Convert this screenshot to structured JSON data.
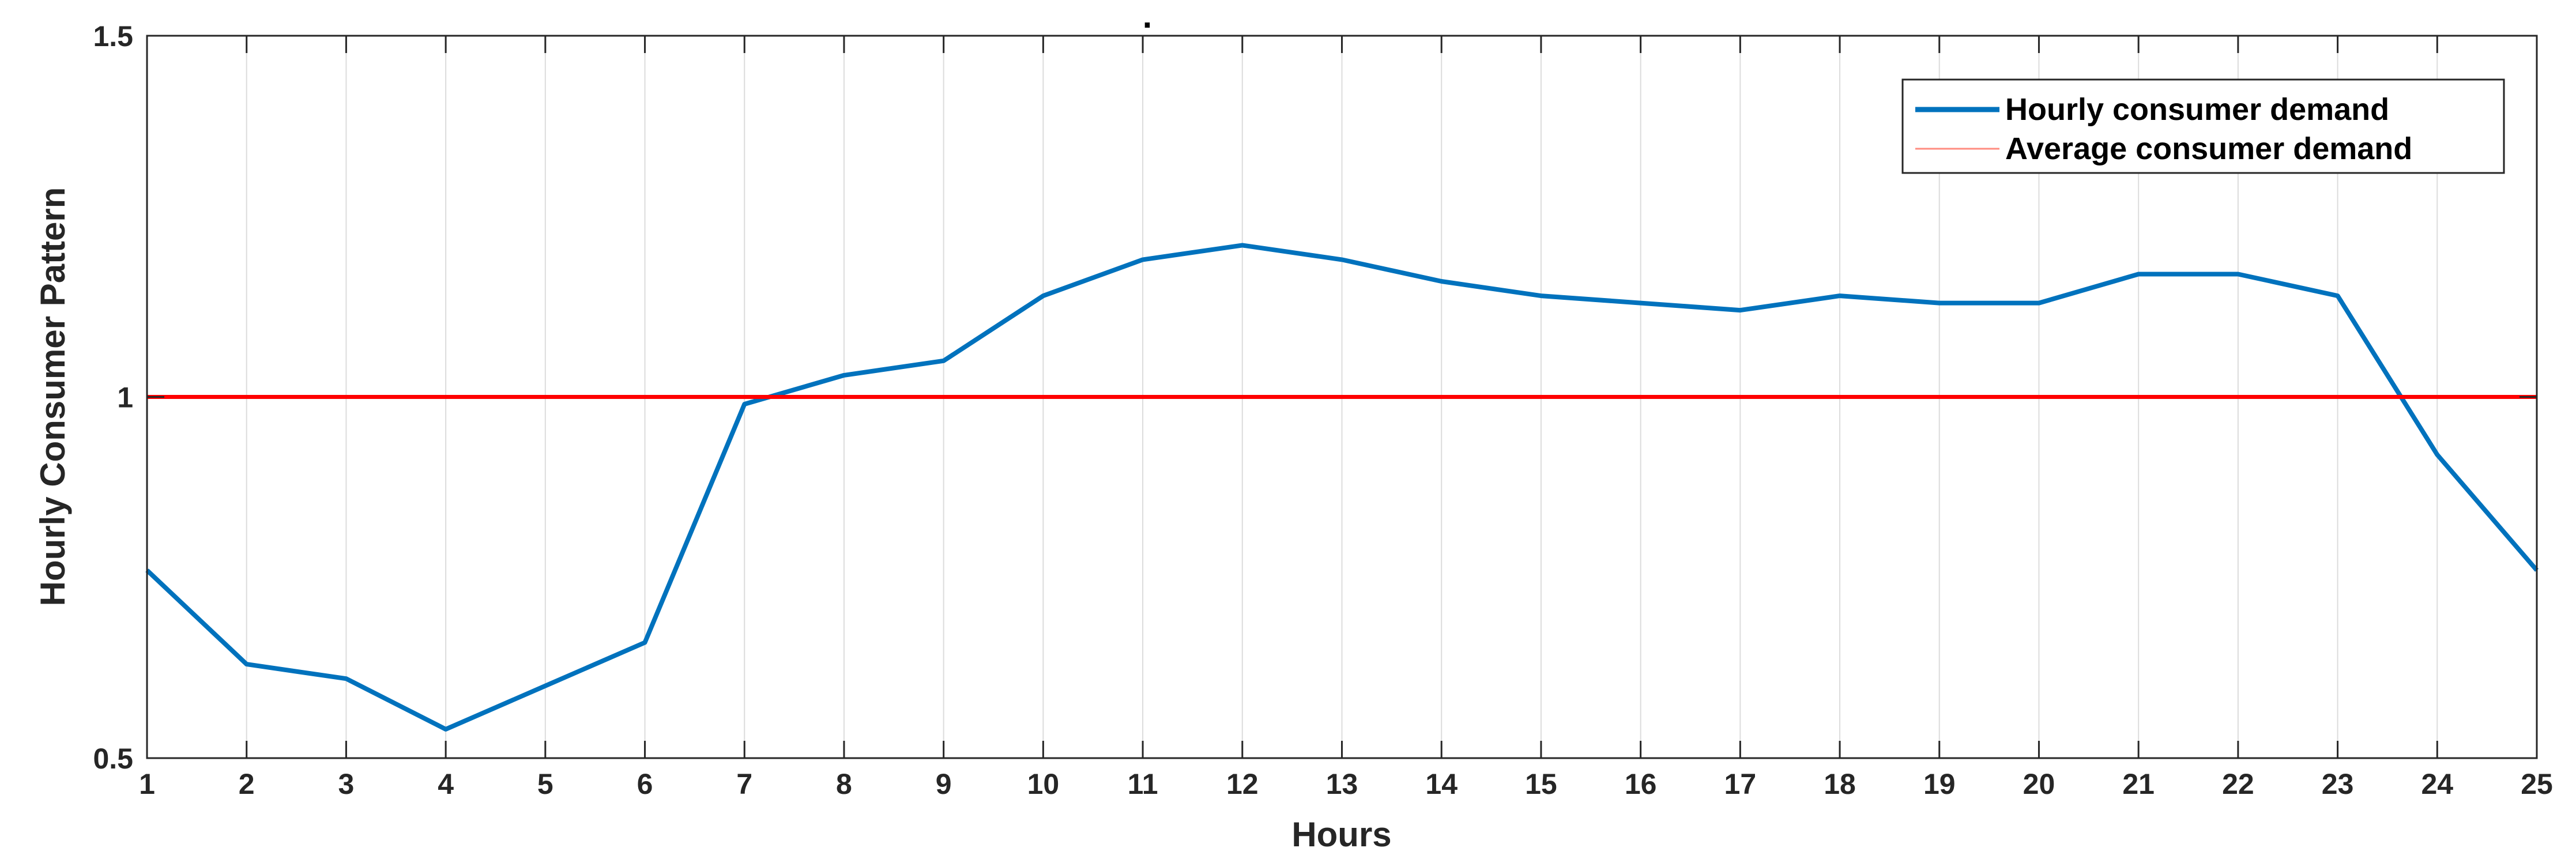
{
  "chart_data": {
    "type": "line",
    "title": ".",
    "xlabel": "Hours",
    "ylabel": "Hourly Consumer Pattern",
    "xlim": [
      1,
      25
    ],
    "ylim": [
      0.5,
      1.5
    ],
    "x_ticks": [
      1,
      2,
      3,
      4,
      5,
      6,
      7,
      8,
      9,
      10,
      11,
      12,
      13,
      14,
      15,
      16,
      17,
      18,
      19,
      20,
      21,
      22,
      23,
      24,
      25
    ],
    "y_ticks": [
      {
        "value": 0.5,
        "label": "0.5"
      },
      {
        "value": 1,
        "label": "1"
      },
      {
        "value": 1.5,
        "label": "1.5"
      }
    ],
    "grid": "vertical",
    "legend_position": "top-right",
    "series": [
      {
        "name": "Hourly consumer demand",
        "color": "#0072BD",
        "x": [
          1,
          2,
          3,
          4,
          5,
          6,
          7,
          8,
          9,
          10,
          11,
          12,
          13,
          14,
          15,
          16,
          17,
          18,
          19,
          20,
          21,
          22,
          23,
          24,
          25
        ],
        "values": [
          0.76,
          0.63,
          0.61,
          0.54,
          0.6,
          0.66,
          0.99,
          1.03,
          1.05,
          1.14,
          1.19,
          1.21,
          1.19,
          1.16,
          1.14,
          1.13,
          1.12,
          1.14,
          1.13,
          1.13,
          1.17,
          1.17,
          1.14,
          0.92,
          0.76
        ]
      },
      {
        "name": "Average consumer demand",
        "color": "#FF0000",
        "x": [
          1,
          25
        ],
        "values": [
          1,
          1
        ]
      }
    ]
  }
}
